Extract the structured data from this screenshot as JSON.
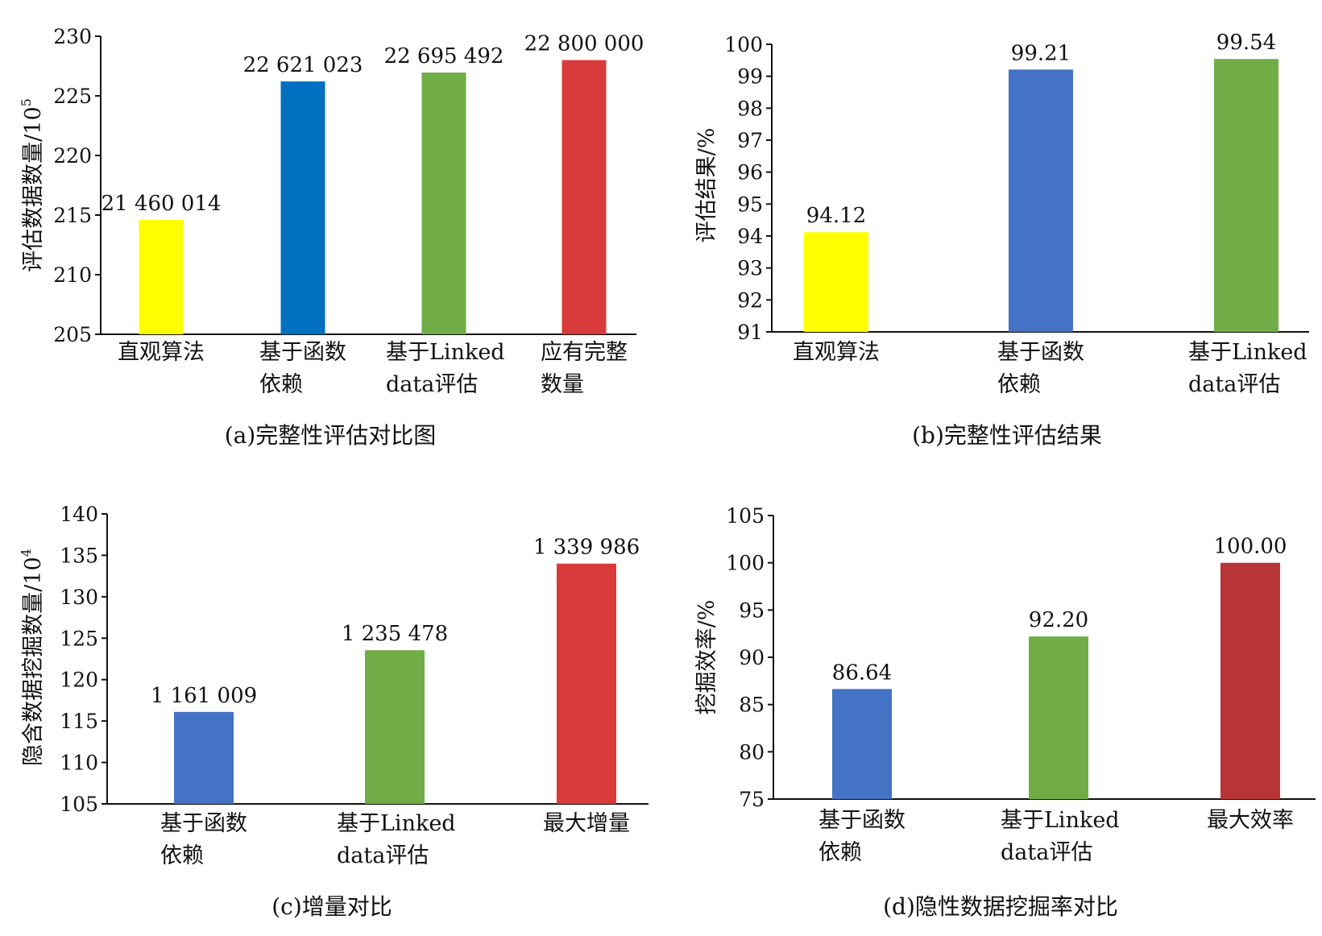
{
  "chart_data": [
    {
      "type": "bar",
      "caption": "(a)完整性评估对比图",
      "ylabel": "评估数据数量/10",
      "ylabel_sup": "5",
      "ylim": [
        205,
        230
      ],
      "yticks": [
        205,
        210,
        215,
        220,
        225,
        230
      ],
      "categories": [
        [
          "直观算法"
        ],
        [
          "基于函数",
          "依赖"
        ],
        [
          "基于Linked",
          "data评估"
        ],
        [
          "应有完整",
          "数量"
        ]
      ],
      "values": [
        214.60014,
        226.21023,
        226.95492,
        228.0
      ],
      "data_labels": [
        "21 460 014",
        "22 621 023",
        "22 695 492",
        "22 800 000"
      ],
      "colors": [
        "#ffff00",
        "#0070c0",
        "#70ad47",
        "#d93a3a"
      ],
      "grid": false,
      "legend": "none"
    },
    {
      "type": "bar",
      "caption": "(b)完整性评估结果",
      "ylabel": "评估结果/%",
      "ylabel_sup": "",
      "ylim": [
        91,
        100
      ],
      "yticks": [
        91,
        92,
        93,
        94,
        95,
        96,
        97,
        98,
        99,
        100
      ],
      "categories": [
        [
          "直观算法"
        ],
        [
          "基于函数",
          "依赖"
        ],
        [
          "基于Linked",
          "data评估"
        ]
      ],
      "values": [
        94.12,
        99.21,
        99.54
      ],
      "data_labels": [
        "94.12",
        "99.21",
        "99.54"
      ],
      "colors": [
        "#ffff00",
        "#4472c4",
        "#70ad47"
      ],
      "grid": false,
      "legend": "none"
    },
    {
      "type": "bar",
      "caption": "(c)增量对比",
      "ylabel": "隐含数据挖掘数量/10",
      "ylabel_sup": "4",
      "ylim": [
        105,
        140
      ],
      "yticks": [
        105,
        110,
        115,
        120,
        125,
        130,
        135,
        140
      ],
      "categories": [
        [
          "基于函数",
          "依赖"
        ],
        [
          "基于Linked",
          "data评估"
        ],
        [
          "最大增量"
        ]
      ],
      "values": [
        116.1009,
        123.5478,
        133.9986
      ],
      "data_labels": [
        "1 161 009",
        "1 235 478",
        "1 339 986"
      ],
      "colors": [
        "#4472c4",
        "#70ad47",
        "#d93a3a"
      ],
      "grid": false,
      "legend": "none"
    },
    {
      "type": "bar",
      "caption": "(d)隐性数据挖掘率对比",
      "ylabel": "挖掘效率/%",
      "ylabel_sup": "",
      "ylim": [
        75,
        105
      ],
      "yticks": [
        75,
        80,
        85,
        90,
        95,
        100,
        105
      ],
      "categories": [
        [
          "基于函数",
          "依赖"
        ],
        [
          "基于Linked",
          "data评估"
        ],
        [
          "最大效率"
        ]
      ],
      "values": [
        86.64,
        92.2,
        100.0
      ],
      "data_labels": [
        "86.64",
        "92.20",
        "100.00"
      ],
      "colors": [
        "#4472c4",
        "#70ad47",
        "#b73537"
      ],
      "grid": false,
      "legend": "none"
    }
  ]
}
